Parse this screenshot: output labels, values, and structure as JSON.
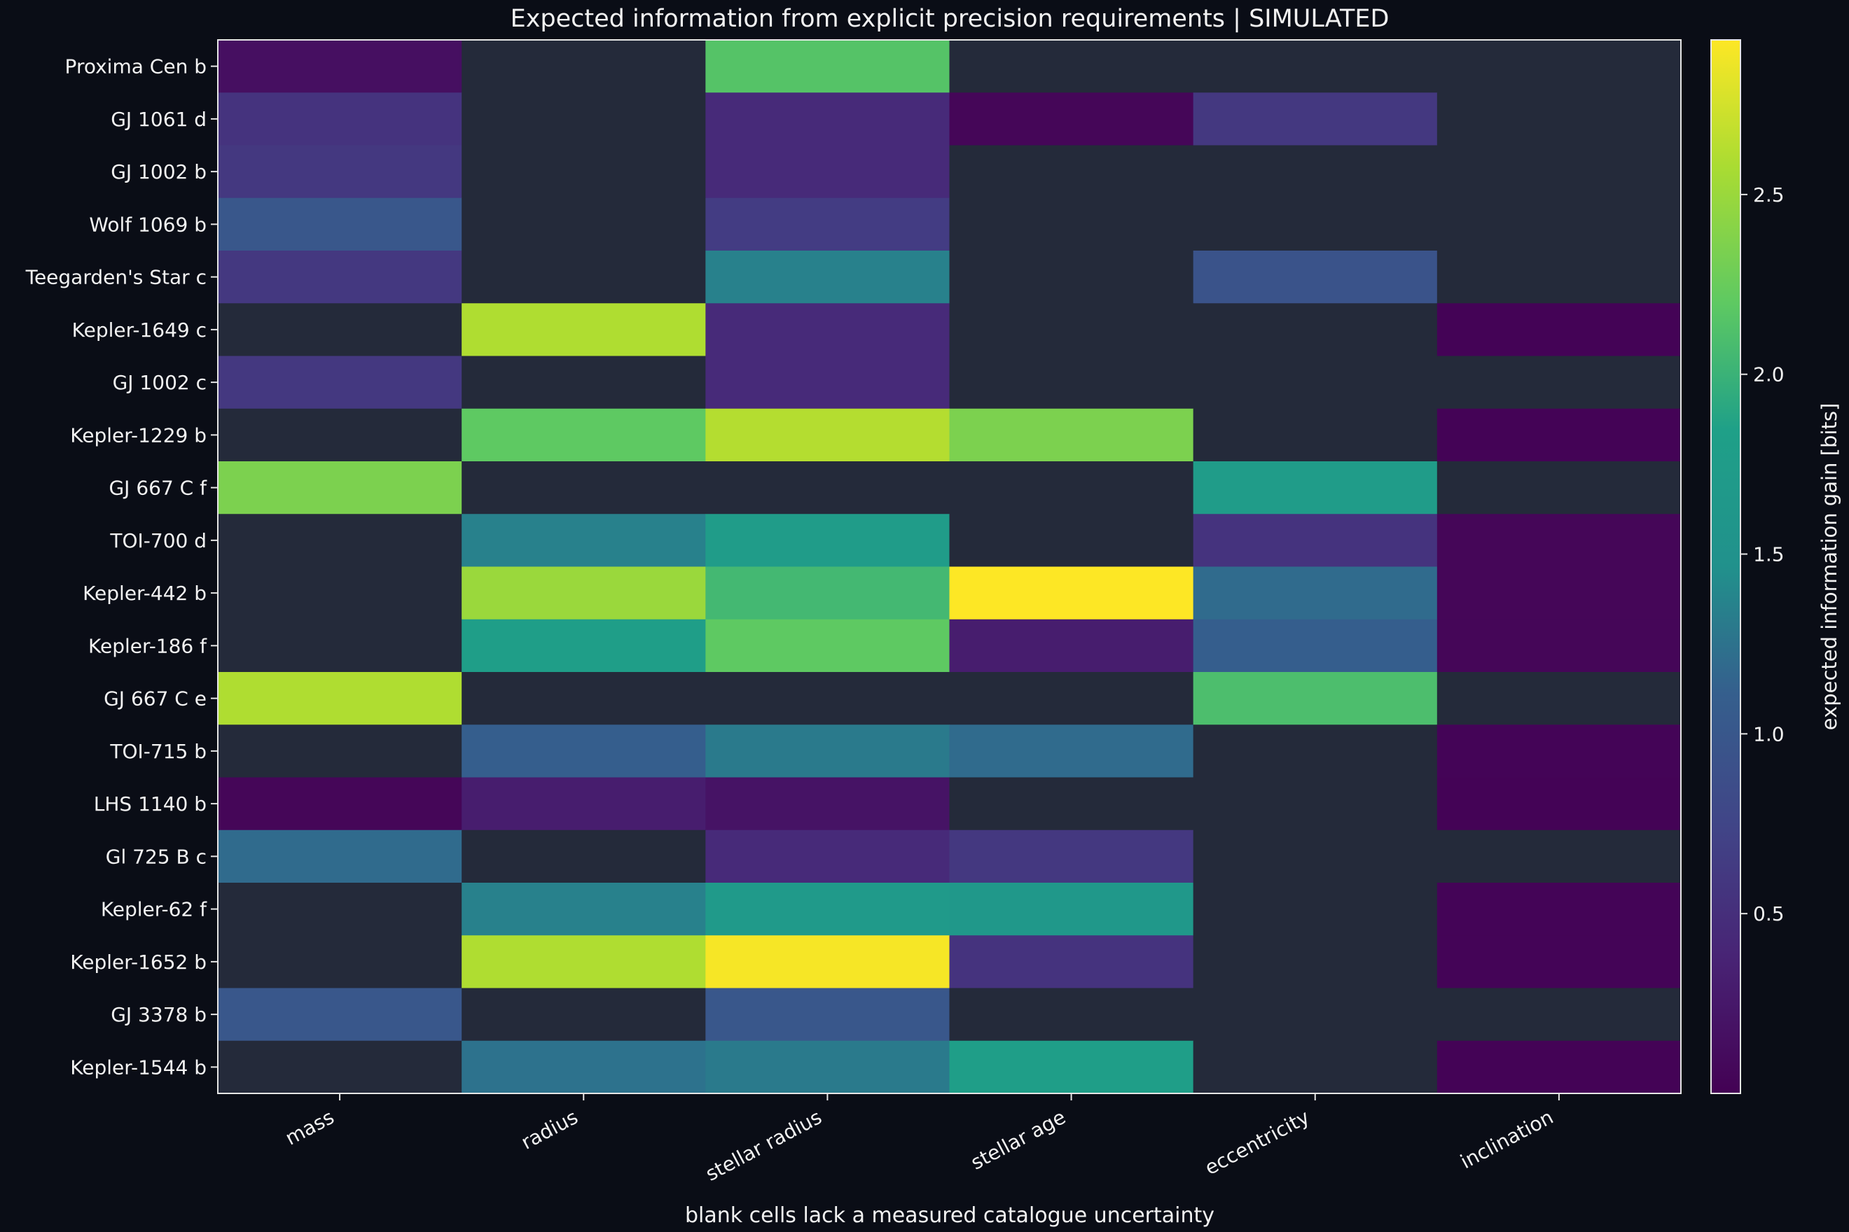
{
  "chart_data": {
    "type": "heatmap",
    "title": "Expected information from explicit precision requirements | SIMULATED",
    "xlabel": "blank cells lack a measured catalogue uncertainty",
    "ylabel": "",
    "colorbar": {
      "label": "expected information gain [bits]",
      "vmin": 0.0,
      "vmax": 2.93,
      "ticks": [
        "0.5",
        "1.0",
        "1.5",
        "2.0",
        "2.5"
      ],
      "tick_values": [
        0.5,
        1.0,
        1.5,
        2.0,
        2.5
      ],
      "colormap": "viridis"
    },
    "columns": [
      "mass",
      "radius",
      "stellar radius",
      "stellar age",
      "eccentricity",
      "inclination"
    ],
    "rows": [
      "Proxima Cen b",
      "GJ 1061 d",
      "GJ 1002 b",
      "Wolf 1069 b",
      "Teegarden's Star c",
      "Kepler-1649 c",
      "GJ 1002 c",
      "Kepler-1229 b",
      "GJ 667 C f",
      "TOI-700 d",
      "Kepler-442 b",
      "Kepler-186 f",
      "GJ 667 C e",
      "TOI-715 b",
      "LHS 1140 b",
      "Gl 725 B c",
      "Kepler-62 f",
      "Kepler-1652 b",
      "GJ 3378 b",
      "Kepler-1544 b"
    ],
    "values": [
      [
        0.15,
        null,
        2.15,
        null,
        null,
        null
      ],
      [
        0.55,
        null,
        0.45,
        0.05,
        0.6,
        null
      ],
      [
        0.6,
        null,
        0.45,
        null,
        null,
        null
      ],
      [
        1.0,
        null,
        0.65,
        null,
        null,
        null
      ],
      [
        0.6,
        null,
        1.35,
        null,
        0.95,
        null
      ],
      [
        null,
        2.6,
        0.45,
        null,
        null,
        0.02
      ],
      [
        0.6,
        null,
        0.45,
        null,
        null,
        null
      ],
      [
        null,
        2.2,
        2.62,
        2.35,
        null,
        0.02
      ],
      [
        2.35,
        null,
        null,
        null,
        1.75,
        null
      ],
      [
        null,
        1.35,
        1.75,
        null,
        0.55,
        0.05
      ],
      [
        null,
        2.5,
        2.05,
        2.93,
        1.2,
        0.05
      ],
      [
        null,
        1.8,
        2.2,
        0.3,
        1.1,
        0.05
      ],
      [
        2.6,
        null,
        null,
        null,
        2.1,
        null
      ],
      [
        null,
        1.1,
        1.3,
        1.2,
        null,
        0.03
      ],
      [
        0.05,
        0.3,
        0.2,
        null,
        null,
        0.02
      ],
      [
        1.2,
        null,
        0.45,
        0.6,
        null,
        null
      ],
      [
        null,
        1.35,
        1.7,
        1.65,
        null,
        0.03
      ],
      [
        null,
        2.6,
        2.9,
        0.55,
        null,
        0.03
      ],
      [
        1.0,
        null,
        1.0,
        null,
        null,
        null
      ],
      [
        null,
        1.25,
        1.3,
        1.8,
        null,
        0.02
      ]
    ],
    "blank_color": "#242a3a",
    "background_color": "#0a0d16"
  }
}
